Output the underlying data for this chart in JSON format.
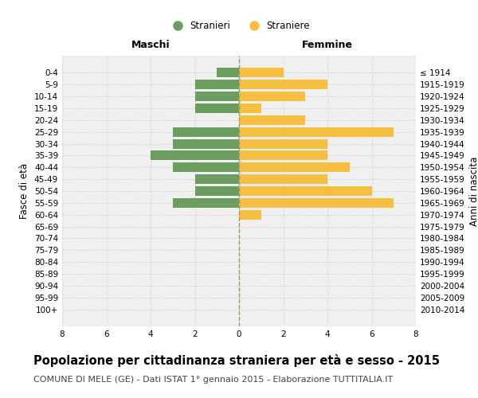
{
  "age_groups": [
    "0-4",
    "5-9",
    "10-14",
    "15-19",
    "20-24",
    "25-29",
    "30-34",
    "35-39",
    "40-44",
    "45-49",
    "50-54",
    "55-59",
    "60-64",
    "65-69",
    "70-74",
    "75-79",
    "80-84",
    "85-89",
    "90-94",
    "95-99",
    "100+"
  ],
  "birth_years": [
    "2010-2014",
    "2005-2009",
    "2000-2004",
    "1995-1999",
    "1990-1994",
    "1985-1989",
    "1980-1984",
    "1975-1979",
    "1970-1974",
    "1965-1969",
    "1960-1964",
    "1955-1959",
    "1950-1954",
    "1945-1949",
    "1940-1944",
    "1935-1939",
    "1930-1934",
    "1925-1929",
    "1920-1924",
    "1915-1919",
    "≤ 1914"
  ],
  "males": [
    1,
    2,
    2,
    2,
    0,
    3,
    3,
    4,
    3,
    2,
    2,
    3,
    0,
    0,
    0,
    0,
    0,
    0,
    0,
    0,
    0
  ],
  "females": [
    2,
    4,
    3,
    1,
    3,
    7,
    4,
    4,
    5,
    4,
    6,
    7,
    1,
    0,
    0,
    0,
    0,
    0,
    0,
    0,
    0
  ],
  "male_color": "#6b9e5e",
  "female_color": "#f5c041",
  "xlim": 8,
  "xlabel_left": "Maschi",
  "xlabel_right": "Femmine",
  "ylabel_left": "Fasce di età",
  "ylabel_right": "Anni di nascita",
  "legend_male": "Stranieri",
  "legend_female": "Straniere",
  "title": "Popolazione per cittadinanza straniera per età e sesso - 2015",
  "subtitle": "COMUNE DI MELE (GE) - Dati ISTAT 1° gennaio 2015 - Elaborazione TUTTITALIA.IT",
  "bar_height": 0.8,
  "grid_color": "#cccccc",
  "bg_color": "#ffffff",
  "plot_bg_color": "#f0f0f0",
  "center_line_color": "#999966",
  "title_fontsize": 10.5,
  "subtitle_fontsize": 8,
  "axis_label_fontsize": 8.5,
  "tick_fontsize": 7.5,
  "maschi_femmine_fontsize": 9
}
